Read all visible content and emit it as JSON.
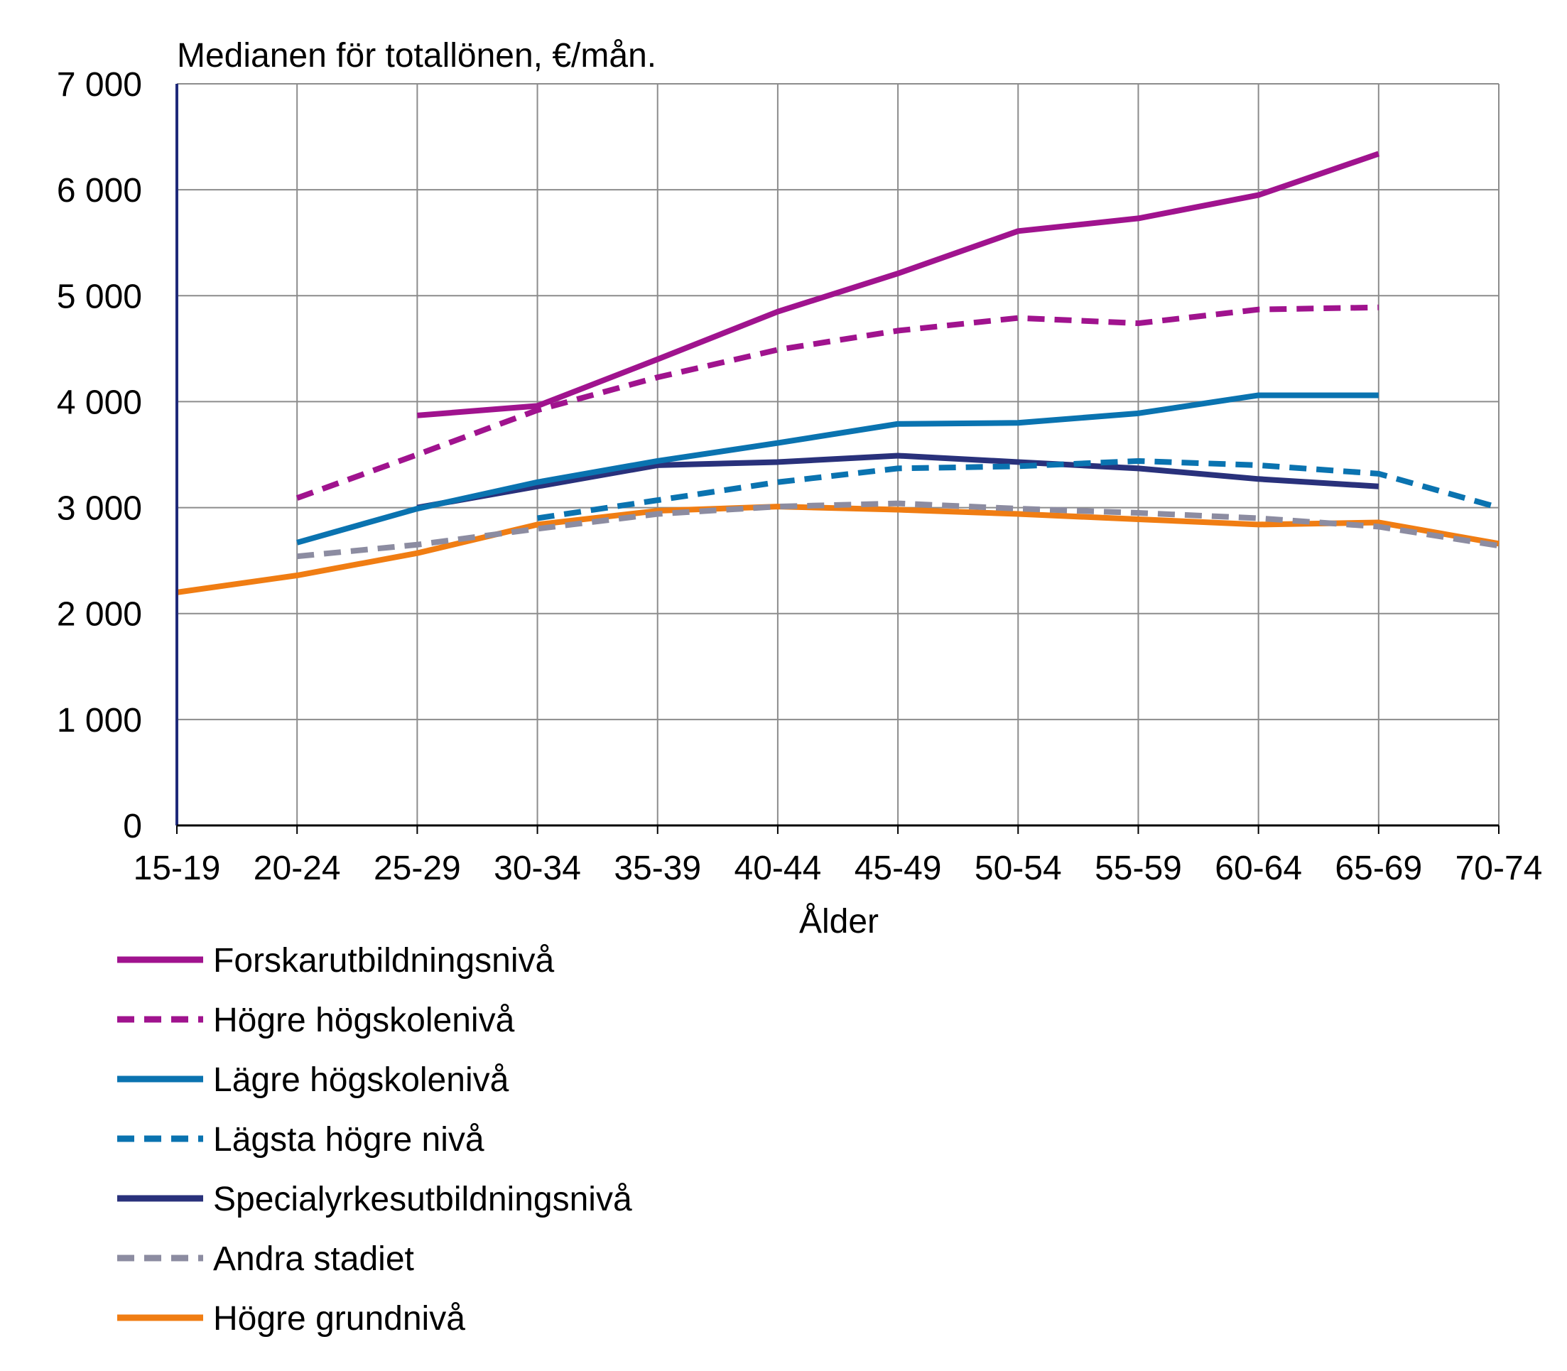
{
  "chart_data": {
    "type": "line",
    "title": "Medianen för totallönen, €/mån.",
    "xlabel": "Ålder",
    "ylabel": "",
    "ylim": [
      0,
      7000
    ],
    "yticks": [
      0,
      1000,
      2000,
      3000,
      4000,
      5000,
      6000,
      7000
    ],
    "ytick_labels": [
      "0",
      "1 000",
      "2 000",
      "3 000",
      "4 000",
      "5 000",
      "6 000",
      "7 000"
    ],
    "categories": [
      "15-19",
      "20-24",
      "25-29",
      "30-34",
      "35-39",
      "40-44",
      "45-49",
      "50-54",
      "55-59",
      "60-64",
      "65-69",
      "70-74"
    ],
    "grid": true,
    "legend_position": "bottom-left",
    "series": [
      {
        "name": "Forskarutbildningsnivå",
        "color": "#a0138e",
        "style": "solid",
        "values": [
          null,
          null,
          3870,
          3960,
          4400,
          4850,
          5210,
          5610,
          5730,
          5950,
          6340,
          null
        ]
      },
      {
        "name": "Högre högskolenivå",
        "color": "#a0138e",
        "style": "dashed",
        "values": [
          null,
          3090,
          3500,
          3920,
          4230,
          4490,
          4670,
          4790,
          4740,
          4870,
          4890,
          null
        ]
      },
      {
        "name": "Lägre högskolenivå",
        "color": "#0a73b0",
        "style": "solid",
        "values": [
          null,
          2670,
          2990,
          3240,
          3440,
          3610,
          3790,
          3800,
          3890,
          4060,
          4060,
          null
        ]
      },
      {
        "name": "Lägsta högre nivå",
        "color": "#0a73b0",
        "style": "dashed",
        "values": [
          null,
          null,
          null,
          2900,
          3070,
          3240,
          3370,
          3390,
          3440,
          3400,
          3320,
          3000
        ]
      },
      {
        "name": "Specialyrkesutbildningsnivå",
        "color": "#29317b",
        "style": "solid",
        "values": [
          null,
          null,
          3000,
          3200,
          3400,
          3430,
          3490,
          3430,
          3370,
          3270,
          3200,
          null
        ]
      },
      {
        "name": "Andra stadiet",
        "color": "#8c8ca1",
        "style": "dashed",
        "values": [
          null,
          2540,
          2650,
          2800,
          2940,
          3010,
          3040,
          2990,
          2950,
          2900,
          2820,
          2640
        ]
      },
      {
        "name": "Högre grundnivå",
        "color": "#f07d13",
        "style": "solid",
        "values": [
          2200,
          2360,
          2570,
          2840,
          2970,
          3010,
          2980,
          2940,
          2890,
          2840,
          2860,
          2660
        ]
      }
    ]
  }
}
